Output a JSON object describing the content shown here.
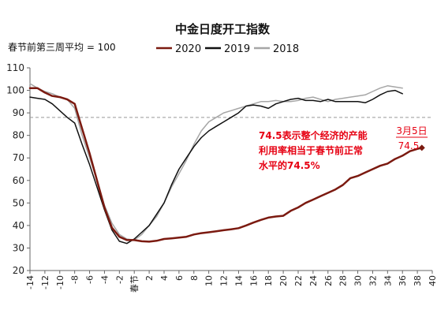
{
  "chart_data": {
    "type": "line",
    "title": "中金日度开工指数",
    "subtitle": "春节前第三周平均 = 100",
    "xlabel": "",
    "ylabel": "",
    "ylim": [
      20,
      110
    ],
    "yticks": [
      20,
      30,
      40,
      50,
      60,
      70,
      80,
      90,
      100,
      110
    ],
    "x_range": [
      -14,
      40
    ],
    "xtick_labels": [
      {
        "x": -14,
        "label": "-14"
      },
      {
        "x": -12,
        "label": "-12"
      },
      {
        "x": -10,
        "label": "-10"
      },
      {
        "x": -8,
        "label": "-8"
      },
      {
        "x": -6,
        "label": "-6"
      },
      {
        "x": -4,
        "label": "-4"
      },
      {
        "x": -2,
        "label": "-2"
      },
      {
        "x": 0,
        "label": "春节"
      },
      {
        "x": 2,
        "label": "2"
      },
      {
        "x": 4,
        "label": "4"
      },
      {
        "x": 6,
        "label": "6"
      },
      {
        "x": 8,
        "label": "8"
      },
      {
        "x": 10,
        "label": "10"
      },
      {
        "x": 12,
        "label": "12"
      },
      {
        "x": 14,
        "label": "14"
      },
      {
        "x": 16,
        "label": "16"
      },
      {
        "x": 18,
        "label": "18"
      },
      {
        "x": 20,
        "label": "20"
      },
      {
        "x": 22,
        "label": "22"
      },
      {
        "x": 24,
        "label": "24"
      },
      {
        "x": 26,
        "label": "26"
      },
      {
        "x": 28,
        "label": "28"
      },
      {
        "x": 30,
        "label": "30"
      },
      {
        "x": 32,
        "label": "32"
      },
      {
        "x": 34,
        "label": "34"
      },
      {
        "x": 36,
        "label": "36"
      },
      {
        "x": 38,
        "label": "38"
      },
      {
        "x": 40,
        "label": "40"
      }
    ],
    "reference_line": {
      "y": 88,
      "style": "dashed",
      "color": "#999999"
    },
    "legend_position": "top-right",
    "grid": false,
    "series": [
      {
        "name": "2020",
        "color": "#7b1a10",
        "width": 2.5,
        "points": [
          [
            -14,
            101
          ],
          [
            -13,
            101
          ],
          [
            -12,
            99
          ],
          [
            -11,
            97.5
          ],
          [
            -10,
            97
          ],
          [
            -9,
            96
          ],
          [
            -8,
            94
          ],
          [
            -7,
            83
          ],
          [
            -6,
            72
          ],
          [
            -5,
            60
          ],
          [
            -4,
            48
          ],
          [
            -3,
            39
          ],
          [
            -2,
            35
          ],
          [
            -1,
            33.5
          ],
          [
            0,
            33.5
          ],
          [
            1,
            33
          ],
          [
            2,
            32.8
          ],
          [
            3,
            33.2
          ],
          [
            4,
            34
          ],
          [
            5,
            34.3
          ],
          [
            6,
            34.6
          ],
          [
            7,
            35
          ],
          [
            8,
            36
          ],
          [
            9,
            36.6
          ],
          [
            10,
            37
          ],
          [
            11,
            37.4
          ],
          [
            12,
            37.9
          ],
          [
            13,
            38.3
          ],
          [
            14,
            38.8
          ],
          [
            15,
            40
          ],
          [
            16,
            41.3
          ],
          [
            17,
            42.5
          ],
          [
            18,
            43.5
          ],
          [
            19,
            44
          ],
          [
            20,
            44.3
          ],
          [
            21,
            46.5
          ],
          [
            22,
            48
          ],
          [
            23,
            50
          ],
          [
            24,
            51.5
          ],
          [
            25,
            53
          ],
          [
            26,
            54.5
          ],
          [
            27,
            56
          ],
          [
            28,
            58
          ],
          [
            29,
            61
          ],
          [
            30,
            62
          ],
          [
            31,
            63.5
          ],
          [
            32,
            65
          ],
          [
            33,
            66.5
          ],
          [
            34,
            67.5
          ],
          [
            35,
            69.5
          ],
          [
            36,
            71
          ],
          [
            37,
            73
          ],
          [
            38,
            74
          ],
          [
            38.6,
            74.5
          ]
        ],
        "end_marker": "diamond"
      },
      {
        "name": "2019",
        "color": "#111111",
        "width": 1.5,
        "points": [
          [
            -14,
            97
          ],
          [
            -13,
            96.5
          ],
          [
            -12,
            96
          ],
          [
            -11,
            94
          ],
          [
            -10,
            91
          ],
          [
            -9,
            88
          ],
          [
            -8,
            85.5
          ],
          [
            -7,
            76
          ],
          [
            -6,
            67
          ],
          [
            -5,
            57
          ],
          [
            -4,
            47
          ],
          [
            -3,
            38
          ],
          [
            -2,
            33
          ],
          [
            -1,
            32
          ],
          [
            0,
            34
          ],
          [
            1,
            37
          ],
          [
            2,
            40
          ],
          [
            3,
            45
          ],
          [
            4,
            50
          ],
          [
            5,
            58
          ],
          [
            6,
            65
          ],
          [
            7,
            70
          ],
          [
            8,
            75
          ],
          [
            9,
            79
          ],
          [
            10,
            82
          ],
          [
            11,
            84
          ],
          [
            12,
            86
          ],
          [
            13,
            88
          ],
          [
            14,
            90
          ],
          [
            15,
            93
          ],
          [
            16,
            93.5
          ],
          [
            17,
            93
          ],
          [
            18,
            92
          ],
          [
            19,
            94
          ],
          [
            20,
            95
          ],
          [
            21,
            96
          ],
          [
            22,
            96.5
          ],
          [
            23,
            95.5
          ],
          [
            24,
            95.5
          ],
          [
            25,
            95
          ],
          [
            26,
            96
          ],
          [
            27,
            95
          ],
          [
            28,
            95
          ],
          [
            29,
            95
          ],
          [
            30,
            95
          ],
          [
            31,
            94.5
          ],
          [
            32,
            96
          ],
          [
            33,
            98
          ],
          [
            34,
            99.5
          ],
          [
            35,
            100
          ],
          [
            36,
            98.5
          ]
        ]
      },
      {
        "name": "2018",
        "color": "#a6a6a6",
        "width": 1.5,
        "points": [
          [
            -14,
            103
          ],
          [
            -13,
            101
          ],
          [
            -12,
            99.5
          ],
          [
            -11,
            98.5
          ],
          [
            -10,
            97
          ],
          [
            -9,
            96
          ],
          [
            -8,
            92
          ],
          [
            -7,
            80
          ],
          [
            -6,
            70
          ],
          [
            -5,
            60
          ],
          [
            -4,
            49
          ],
          [
            -3,
            41
          ],
          [
            -2,
            36
          ],
          [
            -1,
            34
          ],
          [
            0,
            33.5
          ],
          [
            1,
            36
          ],
          [
            2,
            40
          ],
          [
            3,
            44
          ],
          [
            4,
            50
          ],
          [
            5,
            57
          ],
          [
            6,
            63
          ],
          [
            7,
            69
          ],
          [
            8,
            76
          ],
          [
            9,
            82
          ],
          [
            10,
            86
          ],
          [
            11,
            88
          ],
          [
            12,
            90
          ],
          [
            13,
            91
          ],
          [
            14,
            92
          ],
          [
            15,
            93
          ],
          [
            16,
            94
          ],
          [
            17,
            95
          ],
          [
            18,
            95
          ],
          [
            19,
            95.5
          ],
          [
            20,
            95
          ],
          [
            21,
            95
          ],
          [
            22,
            95.5
          ],
          [
            23,
            96.5
          ],
          [
            24,
            97
          ],
          [
            25,
            96
          ],
          [
            26,
            95
          ],
          [
            27,
            96
          ],
          [
            28,
            96.5
          ],
          [
            29,
            97
          ],
          [
            30,
            97.5
          ],
          [
            31,
            98
          ],
          [
            32,
            99.5
          ],
          [
            33,
            101
          ],
          [
            34,
            102
          ],
          [
            35,
            101.5
          ],
          [
            36,
            101
          ]
        ]
      }
    ],
    "annotations": {
      "note_line1": "74.5表示整个经济的产能",
      "note_line2": "利用率相当于春节前正常",
      "note_line3": "水平的74.5%",
      "date_label": "3月5日",
      "value_label": "74.5",
      "color": "#e60012"
    }
  }
}
